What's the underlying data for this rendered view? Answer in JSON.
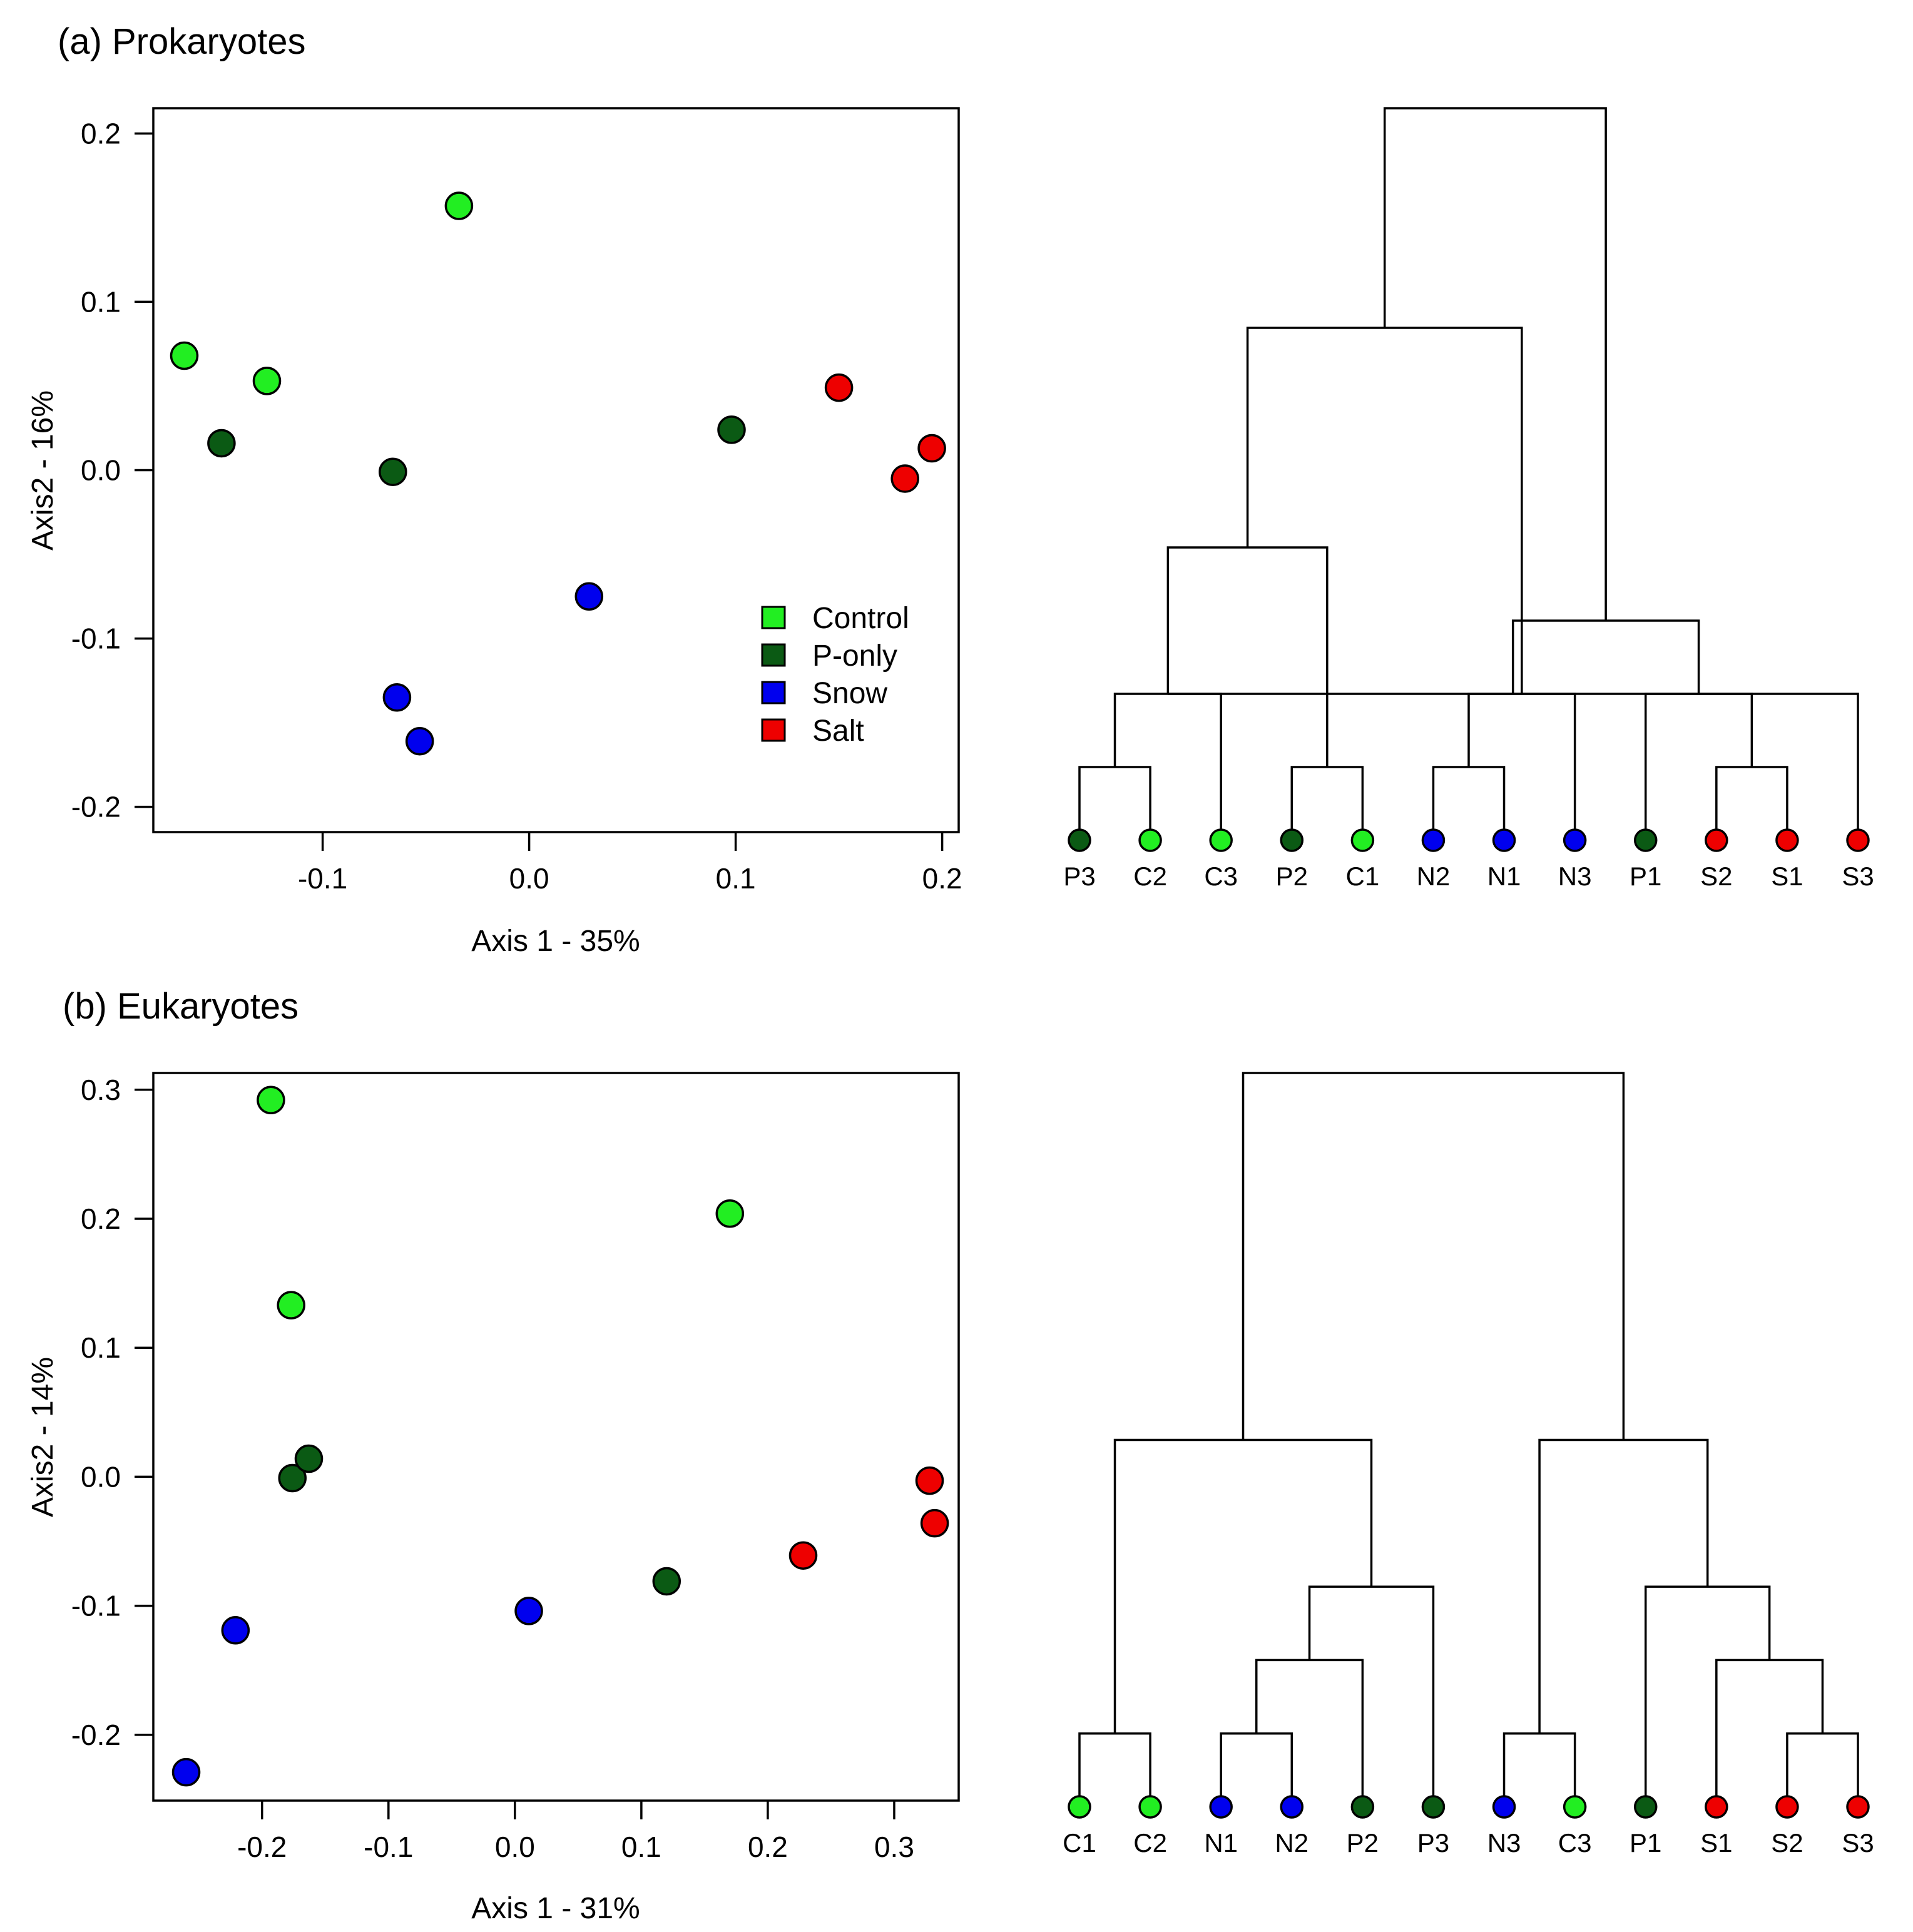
{
  "groups": [
    {
      "key": "C",
      "name": "Control",
      "color": "#22ee22"
    },
    {
      "key": "P",
      "name": "P-only",
      "color": "#0b5a14"
    },
    {
      "key": "N",
      "name": "Snow",
      "color": "#0000ee"
    },
    {
      "key": "S",
      "name": "Salt",
      "color": "#ee0000"
    }
  ],
  "chart_data": [
    {
      "type": "scatter",
      "title": "(a) Prokaryotes",
      "xlabel": "Axis 1 - 35%",
      "ylabel": "Axis2 - 16%",
      "xlim": [
        -0.182,
        0.208
      ],
      "ylim": [
        -0.215,
        0.215
      ],
      "xticks": [
        "-0.1",
        "0.0",
        "0.1",
        "0.2"
      ],
      "yticks": [
        "-0.2",
        "-0.1",
        "0.0",
        "0.1",
        "0.2"
      ],
      "legend": {
        "placement": "bottom-right",
        "entries": [
          "Control",
          "P-only",
          "Snow",
          "Salt"
        ]
      },
      "points": [
        {
          "group": "C",
          "x": -0.167,
          "y": 0.068
        },
        {
          "group": "C",
          "x": -0.127,
          "y": 0.053
        },
        {
          "group": "C",
          "x": -0.034,
          "y": 0.157
        },
        {
          "group": "P",
          "x": -0.149,
          "y": 0.016
        },
        {
          "group": "P",
          "x": -0.066,
          "y": -0.001
        },
        {
          "group": "P",
          "x": 0.098,
          "y": 0.024
        },
        {
          "group": "N",
          "x": 0.029,
          "y": -0.075
        },
        {
          "group": "N",
          "x": -0.064,
          "y": -0.135
        },
        {
          "group": "N",
          "x": -0.053,
          "y": -0.161
        },
        {
          "group": "S",
          "x": 0.15,
          "y": 0.049
        },
        {
          "group": "S",
          "x": 0.182,
          "y": -0.005
        },
        {
          "group": "S",
          "x": 0.195,
          "y": 0.013
        }
      ]
    },
    {
      "type": "dendrogram",
      "leaves": [
        {
          "label": "P3",
          "group": "P"
        },
        {
          "label": "C2",
          "group": "C"
        },
        {
          "label": "C3",
          "group": "C"
        },
        {
          "label": "P2",
          "group": "P"
        },
        {
          "label": "C1",
          "group": "C"
        },
        {
          "label": "N2",
          "group": "N"
        },
        {
          "label": "N1",
          "group": "N"
        },
        {
          "label": "N3",
          "group": "N"
        },
        {
          "label": "P1",
          "group": "P"
        },
        {
          "label": "S2",
          "group": "S"
        },
        {
          "label": "S1",
          "group": "S"
        },
        {
          "label": "S3",
          "group": "S"
        }
      ],
      "merges": [
        [
          -1,
          -2,
          0.1
        ],
        [
          -4,
          -5,
          0.1
        ],
        [
          -6,
          -7,
          0.1
        ],
        [
          -10,
          -11,
          0.1
        ],
        [
          1,
          -3,
          0.2
        ],
        [
          -9,
          4,
          0.2
        ],
        [
          3,
          -8,
          0.2
        ],
        [
          5,
          -12,
          0.2
        ],
        [
          5,
          2,
          0.4
        ],
        [
          6,
          8,
          0.3
        ],
        [
          9,
          7,
          0.7
        ],
        [
          11,
          10,
          1.0
        ]
      ]
    },
    {
      "type": "scatter",
      "title": "(b) Eukaryotes",
      "xlabel": "Axis 1 - 31%",
      "ylabel": "Axis2 - 14%",
      "xlim": [
        -0.286,
        0.351
      ],
      "ylim": [
        -0.251,
        0.313
      ],
      "xticks": [
        "-0.2",
        "-0.1",
        "0.0",
        "0.1",
        "0.2",
        "0.3"
      ],
      "yticks": [
        "-0.2",
        "-0.1",
        "0.0",
        "0.1",
        "0.2",
        "0.3"
      ],
      "points": [
        {
          "group": "C",
          "x": -0.193,
          "y": 0.292
        },
        {
          "group": "C",
          "x": -0.177,
          "y": 0.133
        },
        {
          "group": "C",
          "x": 0.17,
          "y": 0.204
        },
        {
          "group": "P",
          "x": -0.176,
          "y": -0.001
        },
        {
          "group": "P",
          "x": -0.163,
          "y": 0.014
        },
        {
          "group": "P",
          "x": 0.12,
          "y": -0.081
        },
        {
          "group": "N",
          "x": -0.26,
          "y": -0.229
        },
        {
          "group": "N",
          "x": -0.221,
          "y": -0.119
        },
        {
          "group": "N",
          "x": 0.011,
          "y": -0.104
        },
        {
          "group": "S",
          "x": 0.228,
          "y": -0.061
        },
        {
          "group": "S",
          "x": 0.328,
          "y": -0.003
        },
        {
          "group": "S",
          "x": 0.332,
          "y": -0.036
        }
      ]
    },
    {
      "type": "dendrogram",
      "leaves": [
        {
          "label": "C1",
          "group": "C"
        },
        {
          "label": "C2",
          "group": "C"
        },
        {
          "label": "N1",
          "group": "N"
        },
        {
          "label": "N2",
          "group": "N"
        },
        {
          "label": "P2",
          "group": "P"
        },
        {
          "label": "P3",
          "group": "P"
        },
        {
          "label": "N3",
          "group": "N"
        },
        {
          "label": "C3",
          "group": "C"
        },
        {
          "label": "P1",
          "group": "P"
        },
        {
          "label": "S1",
          "group": "S"
        },
        {
          "label": "S2",
          "group": "S"
        },
        {
          "label": "S3",
          "group": "S"
        }
      ],
      "merges": [
        [
          -1,
          -2,
          0.1
        ],
        [
          -3,
          -4,
          0.1
        ],
        [
          -7,
          -8,
          0.1
        ],
        [
          -11,
          -12,
          0.1
        ],
        [
          2,
          -5,
          0.2
        ],
        [
          -10,
          4,
          0.2
        ],
        [
          5,
          -6,
          0.3
        ],
        [
          -9,
          6,
          0.3
        ],
        [
          1,
          7,
          0.5
        ],
        [
          3,
          8,
          0.5
        ],
        [
          9,
          10,
          1.0
        ]
      ]
    }
  ]
}
